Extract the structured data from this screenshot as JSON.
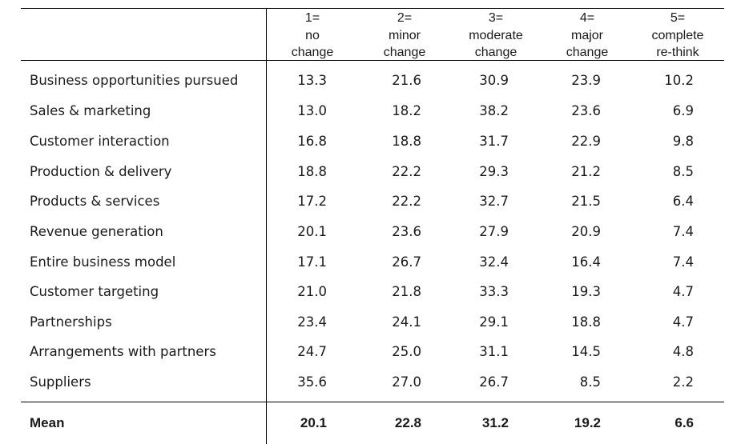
{
  "columns": [
    {
      "lines": [
        "1=",
        "no",
        "change"
      ]
    },
    {
      "lines": [
        "2=",
        "minor",
        "change"
      ]
    },
    {
      "lines": [
        "3=",
        "moderate",
        "change"
      ]
    },
    {
      "lines": [
        "4=",
        "major",
        "change"
      ]
    },
    {
      "lines": [
        "5=",
        "complete",
        "re-think"
      ]
    }
  ],
  "rows": [
    {
      "label": "Business opportunities pursued",
      "values": [
        "13.3",
        "21.6",
        "30.9",
        "23.9",
        "10.2"
      ]
    },
    {
      "label": "Sales & marketing",
      "values": [
        "13.0",
        "18.2",
        "38.2",
        "23.6",
        "6.9"
      ]
    },
    {
      "label": "Customer interaction",
      "values": [
        "16.8",
        "18.8",
        "31.7",
        "22.9",
        "9.8"
      ]
    },
    {
      "label": "Production & delivery",
      "values": [
        "18.8",
        "22.2",
        "29.3",
        "21.2",
        "8.5"
      ]
    },
    {
      "label": "Products & services",
      "values": [
        "17.2",
        "22.2",
        "32.7",
        "21.5",
        "6.4"
      ]
    },
    {
      "label": "Revenue generation",
      "values": [
        "20.1",
        "23.6",
        "27.9",
        "20.9",
        "7.4"
      ]
    },
    {
      "label": "Entire business model",
      "values": [
        "17.1",
        "26.7",
        "32.4",
        "16.4",
        "7.4"
      ]
    },
    {
      "label": "Customer targeting",
      "values": [
        "21.0",
        "21.8",
        "33.3",
        "19.3",
        "4.7"
      ]
    },
    {
      "label": "Partnerships",
      "values": [
        "23.4",
        "24.1",
        "29.1",
        "18.8",
        "4.7"
      ]
    },
    {
      "label": "Arrangements with partners",
      "values": [
        "24.7",
        "25.0",
        "31.1",
        "14.5",
        "4.8"
      ]
    },
    {
      "label": "Suppliers",
      "values": [
        "35.6",
        "27.0",
        "26.7",
        "8.5",
        "2.2"
      ]
    }
  ],
  "mean": {
    "label": "Mean",
    "values": [
      "20.1",
      "22.8",
      "31.2",
      "19.2",
      "6.6"
    ]
  }
}
